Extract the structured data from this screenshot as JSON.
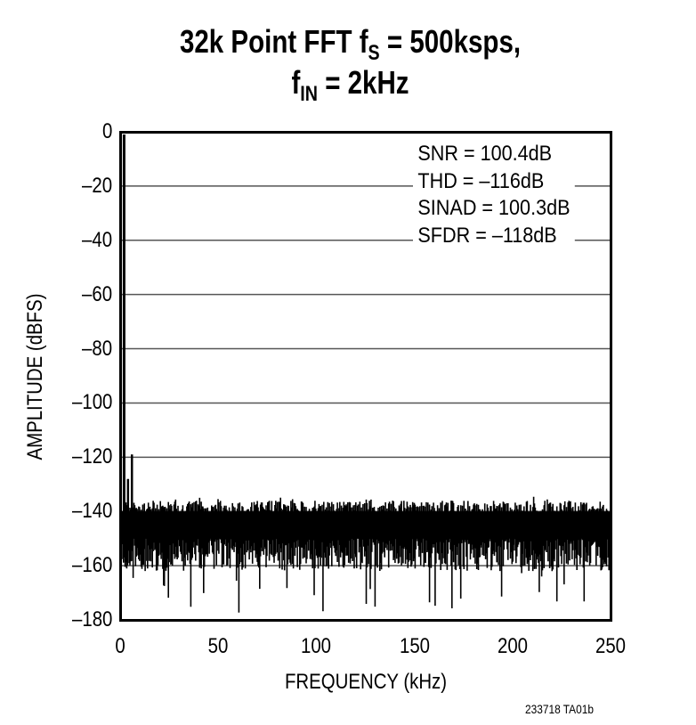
{
  "chart_data": {
    "type": "line",
    "title": "32k Point FFT fS = 500ksps, fIN = 2kHz",
    "title_parts": {
      "line1_prefix": "32k Point FFT f",
      "line1_sub": "S",
      "line1_suffix": " = 500ksps,",
      "line2_prefix": "f",
      "line2_sub": "IN",
      "line2_suffix": " = 2kHz"
    },
    "xlabel": "FREQUENCY (kHz)",
    "ylabel": "AMPLITUDE (dBFS)",
    "xlim": [
      0,
      250
    ],
    "ylim": [
      -180,
      0
    ],
    "xticks": [
      "0",
      "50",
      "100",
      "150",
      "200",
      "250"
    ],
    "yticks": [
      "0",
      "–20",
      "–40",
      "–60",
      "–80",
      "–100",
      "–120",
      "–140",
      "–160",
      "–180"
    ],
    "grid": "horizontal",
    "annotations": [
      "SNR = 100.4dB",
      "THD = –116dB",
      "SINAD = 100.3dB",
      "SFDR = –118dB"
    ],
    "series": [
      {
        "name": "FFT spectrum",
        "fundamental": {
          "x": 2,
          "y": -1
        },
        "harmonics": [
          {
            "x": 4,
            "y": -128
          },
          {
            "x": 6,
            "y": -119
          }
        ],
        "noise_floor_band": [
          -150,
          -140
        ],
        "noise_peak_max": -135,
        "noise_min": -180
      }
    ],
    "figure_code": "233718 TA01b"
  }
}
